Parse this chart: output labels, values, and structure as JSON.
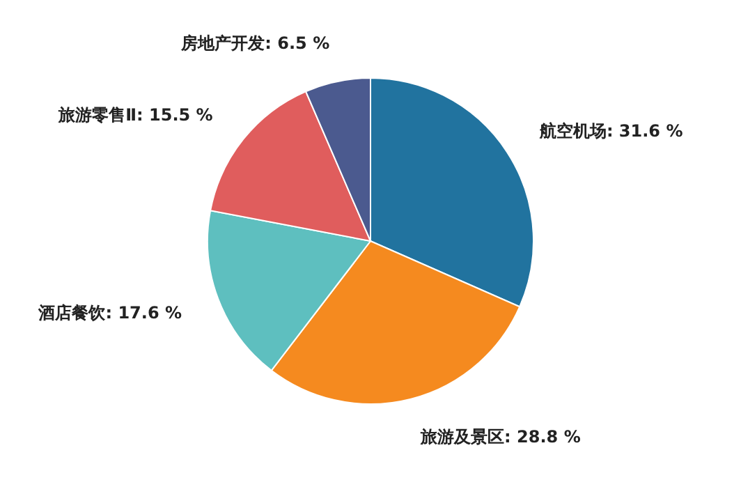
{
  "chart_data": {
    "type": "pie",
    "categories": [
      "航空机场",
      "旅游及景区",
      "酒店餐饮",
      "旅游零售Ⅱ",
      "房地产开发"
    ],
    "values": [
      31.6,
      28.8,
      17.6,
      15.5,
      6.5
    ],
    "value_labels": [
      "31.6 %",
      "28.8 %",
      "17.6 %",
      "15.5 %",
      "6.5 %"
    ],
    "colors": [
      "#21739f",
      "#f58a1f",
      "#5ebfbf",
      "#e05d5d",
      "#4b5a8f"
    ]
  }
}
